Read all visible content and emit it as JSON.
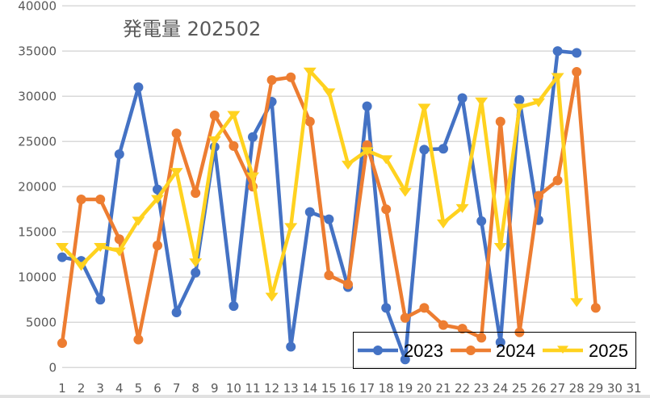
{
  "chart_data": {
    "type": "line",
    "title": "発電量 202502",
    "xlabel": "",
    "ylabel": "",
    "x": [
      1,
      2,
      3,
      4,
      5,
      6,
      7,
      8,
      9,
      10,
      11,
      12,
      13,
      14,
      15,
      16,
      17,
      18,
      19,
      20,
      21,
      22,
      23,
      24,
      25,
      26,
      27,
      28,
      29,
      30,
      31
    ],
    "ylim": [
      0,
      40000
    ],
    "yticks": [
      0,
      5000,
      10000,
      15000,
      20000,
      25000,
      30000,
      35000,
      40000
    ],
    "grid": true,
    "legend_position": "bottom-right-inside",
    "series": [
      {
        "name": "2023",
        "color": "#4472C4",
        "marker": "circle",
        "values": [
          12200,
          11800,
          7500,
          23600,
          31000,
          19700,
          6100,
          10500,
          24400,
          6800,
          25500,
          29400,
          2300,
          17200,
          16400,
          8900,
          28900,
          6600,
          900,
          24100,
          24200,
          29800,
          16200,
          2800,
          29600,
          16300,
          35000,
          34800
        ]
      },
      {
        "name": "2024",
        "color": "#ED7D31",
        "marker": "circle",
        "values": [
          2700,
          18600,
          18600,
          14200,
          3100,
          13500,
          25900,
          19300,
          27900,
          24500,
          20000,
          31800,
          32100,
          27200,
          10200,
          9200,
          24600,
          17500,
          5500,
          6600,
          4700,
          4300,
          3300,
          27200,
          3900,
          19000,
          20700,
          32700,
          6600
        ]
      },
      {
        "name": "2025",
        "color": "#FFD21F",
        "marker": "triangle-down",
        "values": [
          13400,
          11300,
          13400,
          12900,
          16300,
          18700,
          21700,
          11700,
          25200,
          28000,
          21200,
          7900,
          15600,
          32800,
          30500,
          22500,
          24000,
          23100,
          19500,
          28800,
          16000,
          17700,
          29500,
          13400,
          28800,
          29400,
          32200,
          7300
        ]
      }
    ]
  },
  "colors": {
    "grid": "#d9d9d9",
    "text": "#595959",
    "legend_border": "#000000",
    "background": "#ffffff"
  }
}
